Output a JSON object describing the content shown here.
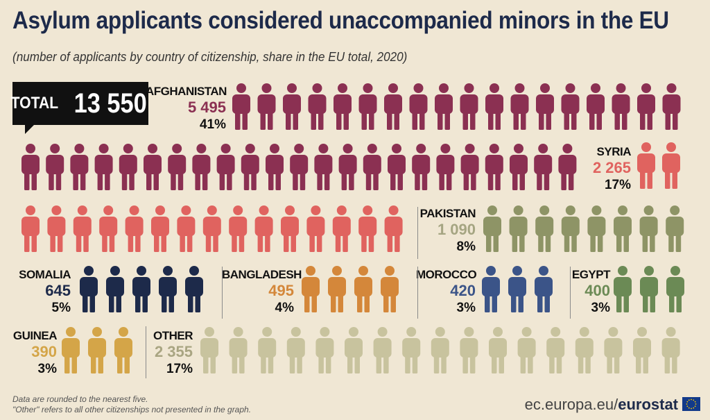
{
  "header": {
    "title": "Asylum applicants considered unaccompanied minors in the EU",
    "subtitle": "(number of applicants by country of citizenship, share in the EU total, 2020)"
  },
  "total": {
    "label": "TOTAL",
    "value": "13 550"
  },
  "chart_data": {
    "type": "pictogram",
    "title": "Asylum applicants considered unaccompanied minors in the EU",
    "subtitle": "(number of applicants by country of citizenship, share in the EU total, 2020)",
    "total": 13550,
    "categories": [
      "AFGHANISTAN",
      "SYRIA",
      "PAKISTAN",
      "SOMALIA",
      "BANGLADESH",
      "MOROCCO",
      "EGYPT",
      "GUINEA",
      "OTHER"
    ],
    "series": [
      {
        "name": "AFGHANISTAN",
        "value": 5495,
        "value_label": "5 495",
        "share": 41,
        "share_label": "41%",
        "icons": 41,
        "color": "#8b3052"
      },
      {
        "name": "SYRIA",
        "value": 2265,
        "value_label": "2 265",
        "share": 17,
        "share_label": "17%",
        "icons": 17,
        "color": "#e0635f"
      },
      {
        "name": "PAKISTAN",
        "value": 1090,
        "value_label": "1 090",
        "share": 8,
        "share_label": "8%",
        "icons": 8,
        "color": "#8e9466"
      },
      {
        "name": "SOMALIA",
        "value": 645,
        "value_label": "645",
        "share": 5,
        "share_label": "5%",
        "icons": 5,
        "color": "#1d2a4a"
      },
      {
        "name": "BANGLADESH",
        "value": 495,
        "value_label": "495",
        "share": 4,
        "share_label": "4%",
        "icons": 4,
        "color": "#d4873a"
      },
      {
        "name": "MOROCCO",
        "value": 420,
        "value_label": "420",
        "share": 3,
        "share_label": "3%",
        "icons": 3,
        "color": "#3b5488"
      },
      {
        "name": "EGYPT",
        "value": 400,
        "value_label": "400",
        "share": 3,
        "share_label": "3%",
        "icons": 3,
        "color": "#6b8a55"
      },
      {
        "name": "GUINEA",
        "value": 390,
        "value_label": "390",
        "share": 3,
        "share_label": "3%",
        "icons": 3,
        "color": "#d4a548"
      },
      {
        "name": "OTHER",
        "value": 2355,
        "value_label": "2 355",
        "share": 17,
        "share_label": "17%",
        "icons": 17,
        "color": "#c8c39e"
      }
    ]
  },
  "footer": {
    "note1": "Data are rounded to the nearest five.",
    "note2": "\"Other\" refers to all other citizenships not presented in the graph.",
    "source_prefix": "ec.europa.eu/",
    "source_brand": "eurostat"
  }
}
